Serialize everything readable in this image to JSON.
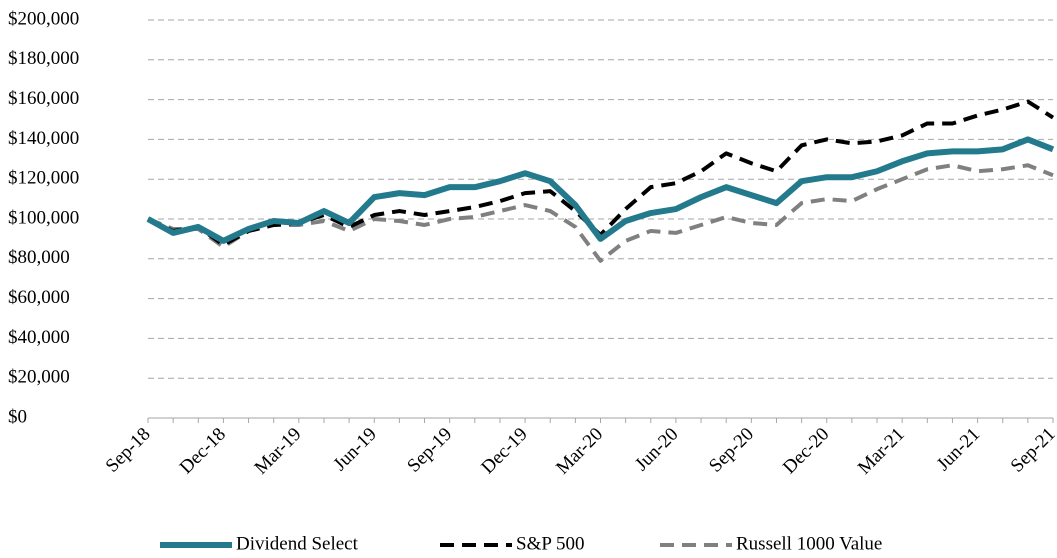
{
  "chart_data": {
    "type": "line",
    "categories": [
      "Sep-18",
      null,
      null,
      "Dec-18",
      null,
      null,
      "Mar-19",
      null,
      null,
      "Jun-19",
      null,
      null,
      "Sep-19",
      null,
      null,
      "Dec-19",
      null,
      null,
      "Mar-20",
      null,
      null,
      "Jun-20",
      null,
      null,
      "Sep-20",
      null,
      null,
      "Dec-20",
      null,
      null,
      "Mar-21",
      null,
      null,
      "Jun-21",
      null,
      null,
      "Sep-21"
    ],
    "series": [
      {
        "name": "Dividend Select",
        "color": "#237a8c",
        "dash": "solid",
        "values": [
          100000,
          93000,
          96000,
          89000,
          95000,
          99000,
          98000,
          104000,
          98000,
          111000,
          113000,
          112000,
          116000,
          116000,
          119000,
          123000,
          119000,
          107000,
          90000,
          99000,
          103000,
          105000,
          111000,
          116000,
          112000,
          108000,
          119000,
          121000,
          121000,
          124000,
          129000,
          133000,
          134000,
          134000,
          135000,
          140000,
          135000
        ]
      },
      {
        "name": "S&P 500",
        "color": "#000000",
        "dash": "dashed",
        "values": [
          100000,
          94000,
          96000,
          87000,
          94000,
          97000,
          98000,
          102000,
          96000,
          102000,
          104000,
          102000,
          104000,
          106000,
          109000,
          113000,
          114000,
          104000,
          92000,
          105000,
          116000,
          118000,
          124000,
          133000,
          128000,
          124000,
          137000,
          140000,
          138000,
          139000,
          142000,
          148000,
          148000,
          152000,
          155000,
          159000,
          151000
        ]
      },
      {
        "name": "Russell 1000 Value",
        "color": "#808080",
        "dash": "dashed",
        "values": [
          100000,
          95000,
          95000,
          86000,
          94000,
          97000,
          97000,
          99000,
          94000,
          100000,
          99000,
          97000,
          100000,
          101000,
          104000,
          107000,
          104000,
          96000,
          79000,
          89000,
          94000,
          93000,
          97000,
          101000,
          98000,
          97000,
          108000,
          110000,
          109000,
          115000,
          120000,
          125000,
          127000,
          124000,
          125000,
          127000,
          122000
        ]
      }
    ],
    "ylim": [
      0,
      200000
    ],
    "yticks": [
      {
        "value": 0,
        "label": "$0"
      },
      {
        "value": 20000,
        "label": "$20,000"
      },
      {
        "value": 40000,
        "label": "$40,000"
      },
      {
        "value": 60000,
        "label": "$60,000"
      },
      {
        "value": 80000,
        "label": "$80,000"
      },
      {
        "value": 100000,
        "label": "$100,000"
      },
      {
        "value": 120000,
        "label": "$120,000"
      },
      {
        "value": 140000,
        "label": "$140,000"
      },
      {
        "value": 160000,
        "label": "$160,000"
      },
      {
        "value": 180000,
        "label": "$180,000"
      },
      {
        "value": 200000,
        "label": "$200,000"
      }
    ],
    "grid": true,
    "legend": "bottom"
  }
}
